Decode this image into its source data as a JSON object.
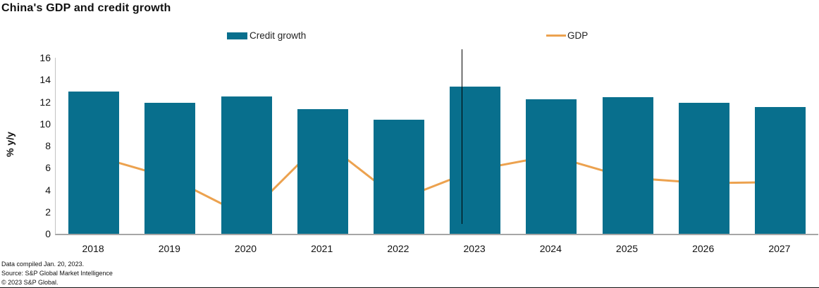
{
  "title": "China's GDP and credit growth",
  "ylabel": "% y/y",
  "legend": {
    "credit": "Credit growth",
    "gdp": "GDP"
  },
  "footer": {
    "line1": "Data compiled Jan. 20, 2023.",
    "line2": "Source: S&P Global Market Intelligence",
    "line3": "© 2023 S&P Global."
  },
  "colors": {
    "bar": "#086F8D",
    "line": "#ECA24F",
    "axis": "#a6a6a6",
    "divider": "#000000"
  },
  "chart_data": {
    "type": "bar",
    "categories": [
      "2018",
      "2019",
      "2020",
      "2021",
      "2022",
      "2023",
      "2024",
      "2025",
      "2026",
      "2027"
    ],
    "series": [
      {
        "name": "Credit growth",
        "type": "bar",
        "color": "#086F8D",
        "values": [
          12.9,
          11.9,
          12.5,
          11.3,
          10.4,
          13.4,
          12.2,
          12.4,
          11.9,
          11.5
        ]
      },
      {
        "name": "GDP",
        "type": "line",
        "color": "#ECA24F",
        "values": [
          7.1,
          5.1,
          1.6,
          8.5,
          3.1,
          5.8,
          7.1,
          5.1,
          4.6,
          4.7
        ]
      }
    ],
    "title": "China's GDP and credit growth",
    "xlabel": "",
    "ylabel": "% y/y",
    "ylim": [
      0,
      16
    ],
    "yticks": [
      0,
      2,
      4,
      6,
      8,
      10,
      12,
      14,
      16
    ],
    "grid": false,
    "legend_position": "top",
    "forecast_divider": {
      "between": [
        "2022",
        "2023"
      ],
      "x_fraction": 0.533
    }
  }
}
